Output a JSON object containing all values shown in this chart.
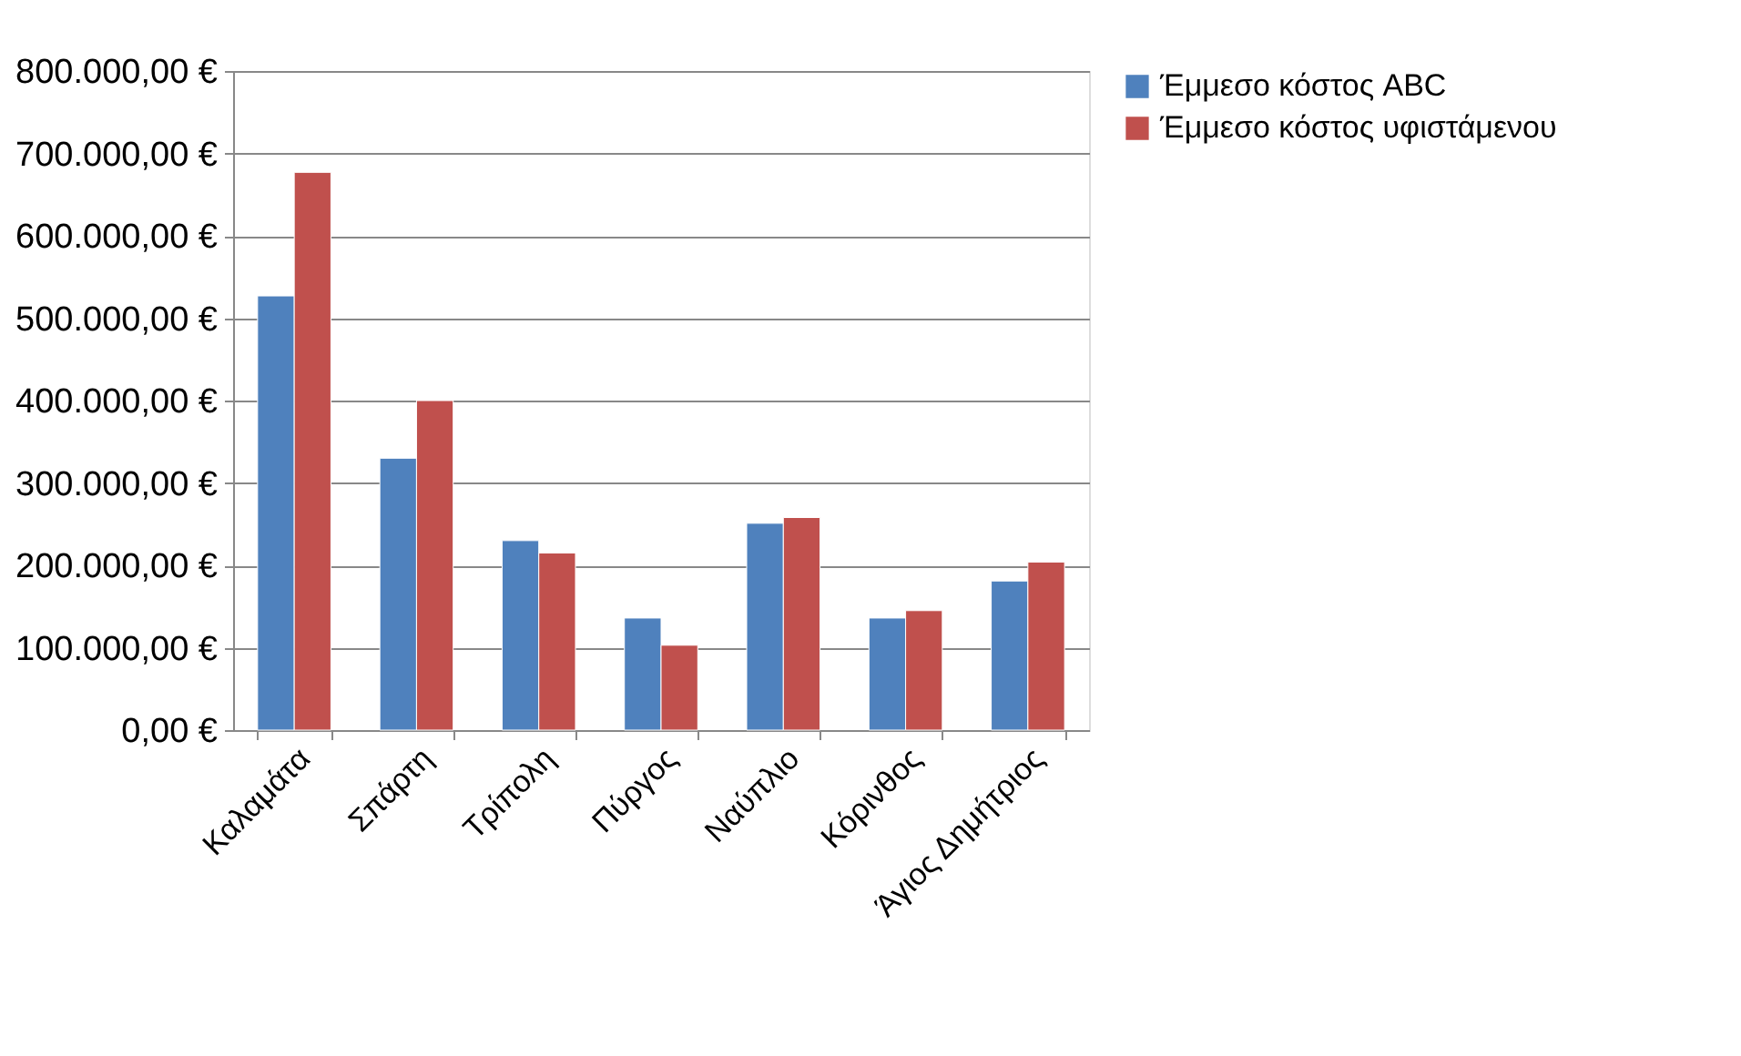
{
  "chart_data": {
    "type": "bar",
    "categories": [
      "Καλαμάτα",
      "Σπάρτη",
      "Τρίπολη",
      "Πύργος",
      "Ναύπλιο",
      "Κόρινθος",
      "Άγιος Δημήτριος"
    ],
    "series": [
      {
        "name": "Έμμεσο κόστος ABC",
        "color": "#4f81bd",
        "values": [
          527000,
          330000,
          230000,
          136000,
          251000,
          136000,
          181000
        ]
      },
      {
        "name": "Έμμεσο κόστος υφιστάμενου",
        "color": "#c0504d",
        "values": [
          677000,
          400000,
          215000,
          103000,
          258000,
          145000,
          204000
        ]
      }
    ],
    "ylim": [
      0,
      800000
    ],
    "yticks": [
      {
        "value": 0,
        "label": "0,00 €"
      },
      {
        "value": 100000,
        "label": "100.000,00 €"
      },
      {
        "value": 200000,
        "label": "200.000,00 €"
      },
      {
        "value": 300000,
        "label": "300.000,00 €"
      },
      {
        "value": 400000,
        "label": "400.000,00 €"
      },
      {
        "value": 500000,
        "label": "500.000,00 €"
      },
      {
        "value": 600000,
        "label": "600.000,00 €"
      },
      {
        "value": 700000,
        "label": "700.000,00 €"
      },
      {
        "value": 800000,
        "label": "800.000,00 €"
      }
    ],
    "grid": "y",
    "legend": "right"
  }
}
